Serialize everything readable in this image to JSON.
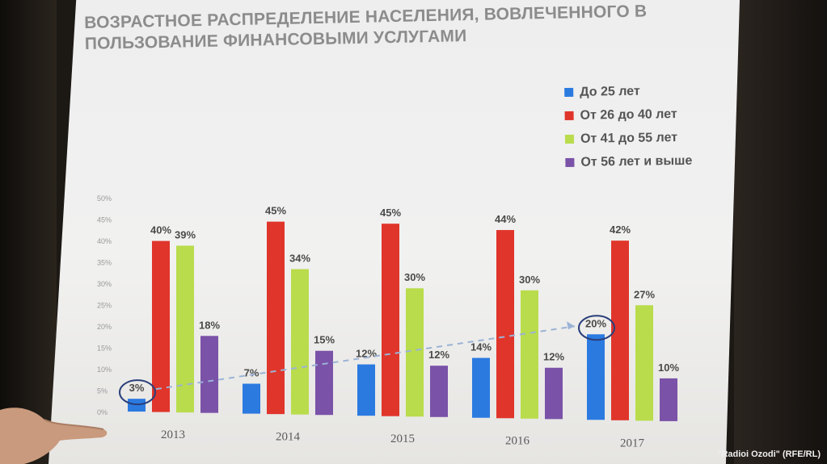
{
  "title": {
    "line1": "ВОЗРАСТНОЕ РАСПРЕДЕЛЕНИЕ НАСЕЛЕНИЯ, ВОВЛЕЧЕННОГО В",
    "line2": "ПОЛЬЗОВАНИЕ ФИНАНСОВЫМИ УСЛУГАМИ"
  },
  "watermark": "\"Radioi Ozodi\" (RFE/RL)",
  "colors": {
    "series_0": "#2b7ae0",
    "series_1": "#e0352b",
    "series_2": "#b9dc4c",
    "series_3": "#7a52a8",
    "highlight": "#2a3f7a"
  },
  "chart_data": {
    "type": "bar",
    "title": "ВОЗРАСТНОЕ РАСПРЕДЕЛЕНИЕ НАСЕЛЕНИЯ, ВОВЛЕЧЕННОГО В ПОЛЬЗОВАНИЕ ФИНАНСОВЫМИ УСЛУГАМИ",
    "categories": [
      "2013",
      "2014",
      "2015",
      "2016",
      "2017"
    ],
    "series": [
      {
        "name": "До 25 лет",
        "values": [
          3,
          7,
          12,
          14,
          20
        ],
        "labels": [
          "3%",
          "7%",
          "12%",
          "14%",
          "20%"
        ]
      },
      {
        "name": "От 26 до 40 лет",
        "values": [
          40,
          45,
          45,
          44,
          42
        ],
        "labels": [
          "40%",
          "45%",
          "45%",
          "44%",
          "42%"
        ]
      },
      {
        "name": "От 41 до 55 лет",
        "values": [
          39,
          34,
          30,
          30,
          27
        ],
        "labels": [
          "39%",
          "34%",
          "30%",
          "30%",
          "27%"
        ]
      },
      {
        "name": "От 56 лет и выше",
        "values": [
          18,
          15,
          12,
          12,
          10
        ],
        "labels": [
          "18%",
          "15%",
          "12%",
          "12%",
          "10%"
        ]
      }
    ],
    "ylim": [
      0,
      50
    ],
    "y_ticks": [
      "0%",
      "5%",
      "10%",
      "15%",
      "20%",
      "25%",
      "30%",
      "35%",
      "40%",
      "45%",
      "50%"
    ],
    "legend": "top-right",
    "grid": false,
    "annotations": [
      "3%",
      "20%"
    ]
  }
}
